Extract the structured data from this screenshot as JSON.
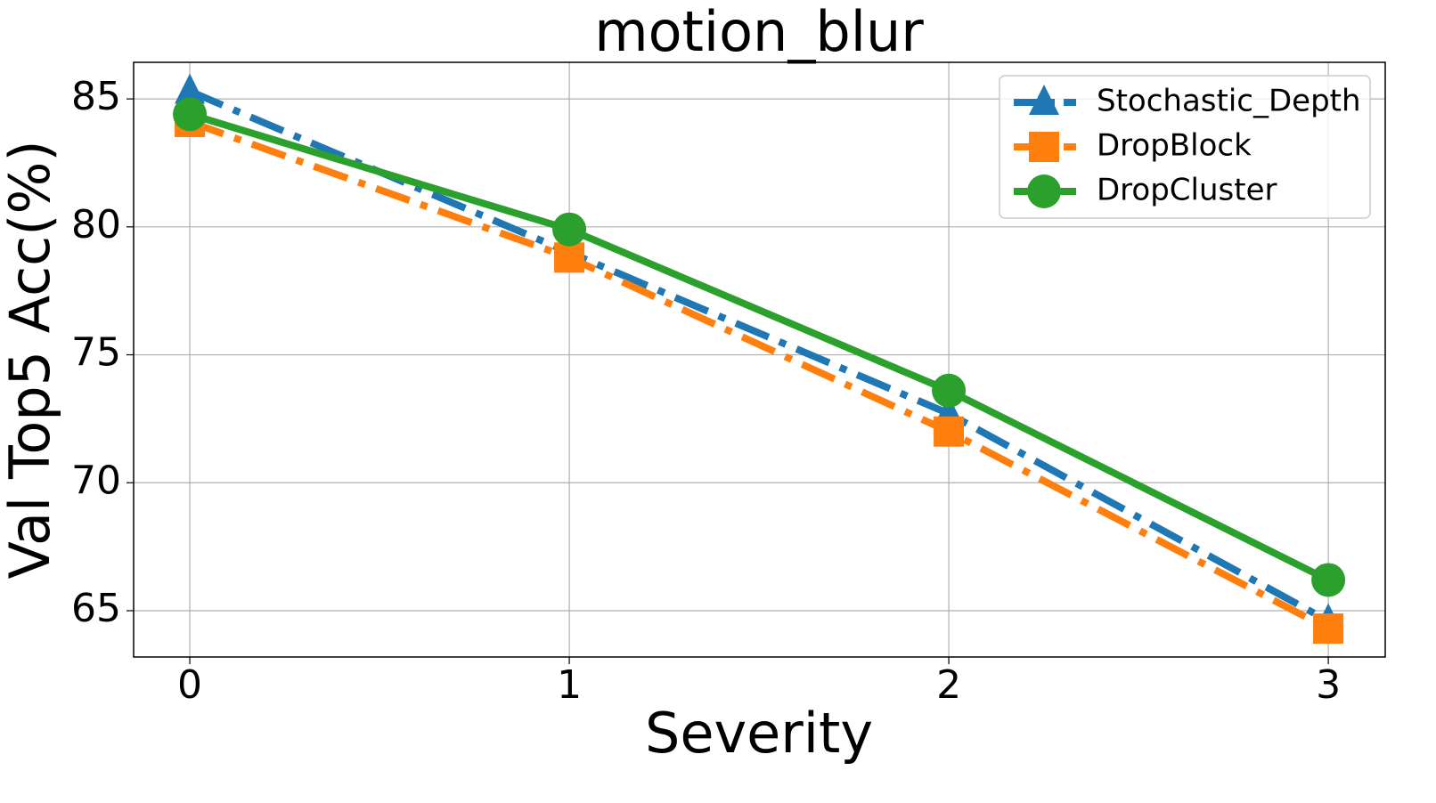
{
  "chart_data": {
    "type": "line",
    "title": "motion_blur",
    "xlabel": "Severity",
    "ylabel": "Val Top5 Acc(%)",
    "x": [
      0,
      1,
      2,
      3
    ],
    "series": [
      {
        "name": "Stochastic_Depth",
        "color": "#1f77b4",
        "linestyle": "dashdot",
        "marker": "triangle",
        "values": [
          85.3,
          79.0,
          72.7,
          64.6
        ]
      },
      {
        "name": "DropBlock",
        "color": "#ff7f0e",
        "linestyle": "dashdot",
        "marker": "square",
        "values": [
          84.1,
          78.8,
          72.0,
          64.3
        ]
      },
      {
        "name": "DropCluster",
        "color": "#2ca02c",
        "linestyle": "solid",
        "marker": "circle",
        "values": [
          84.4,
          79.9,
          73.6,
          66.2
        ]
      }
    ],
    "xlim": [
      -0.148,
      3.15
    ],
    "ylim": [
      63.19,
      86.43
    ],
    "xticks": [
      0,
      1,
      2,
      3
    ],
    "yticks": [
      65,
      70,
      75,
      80,
      85
    ],
    "grid": true,
    "legend": "upper right"
  }
}
